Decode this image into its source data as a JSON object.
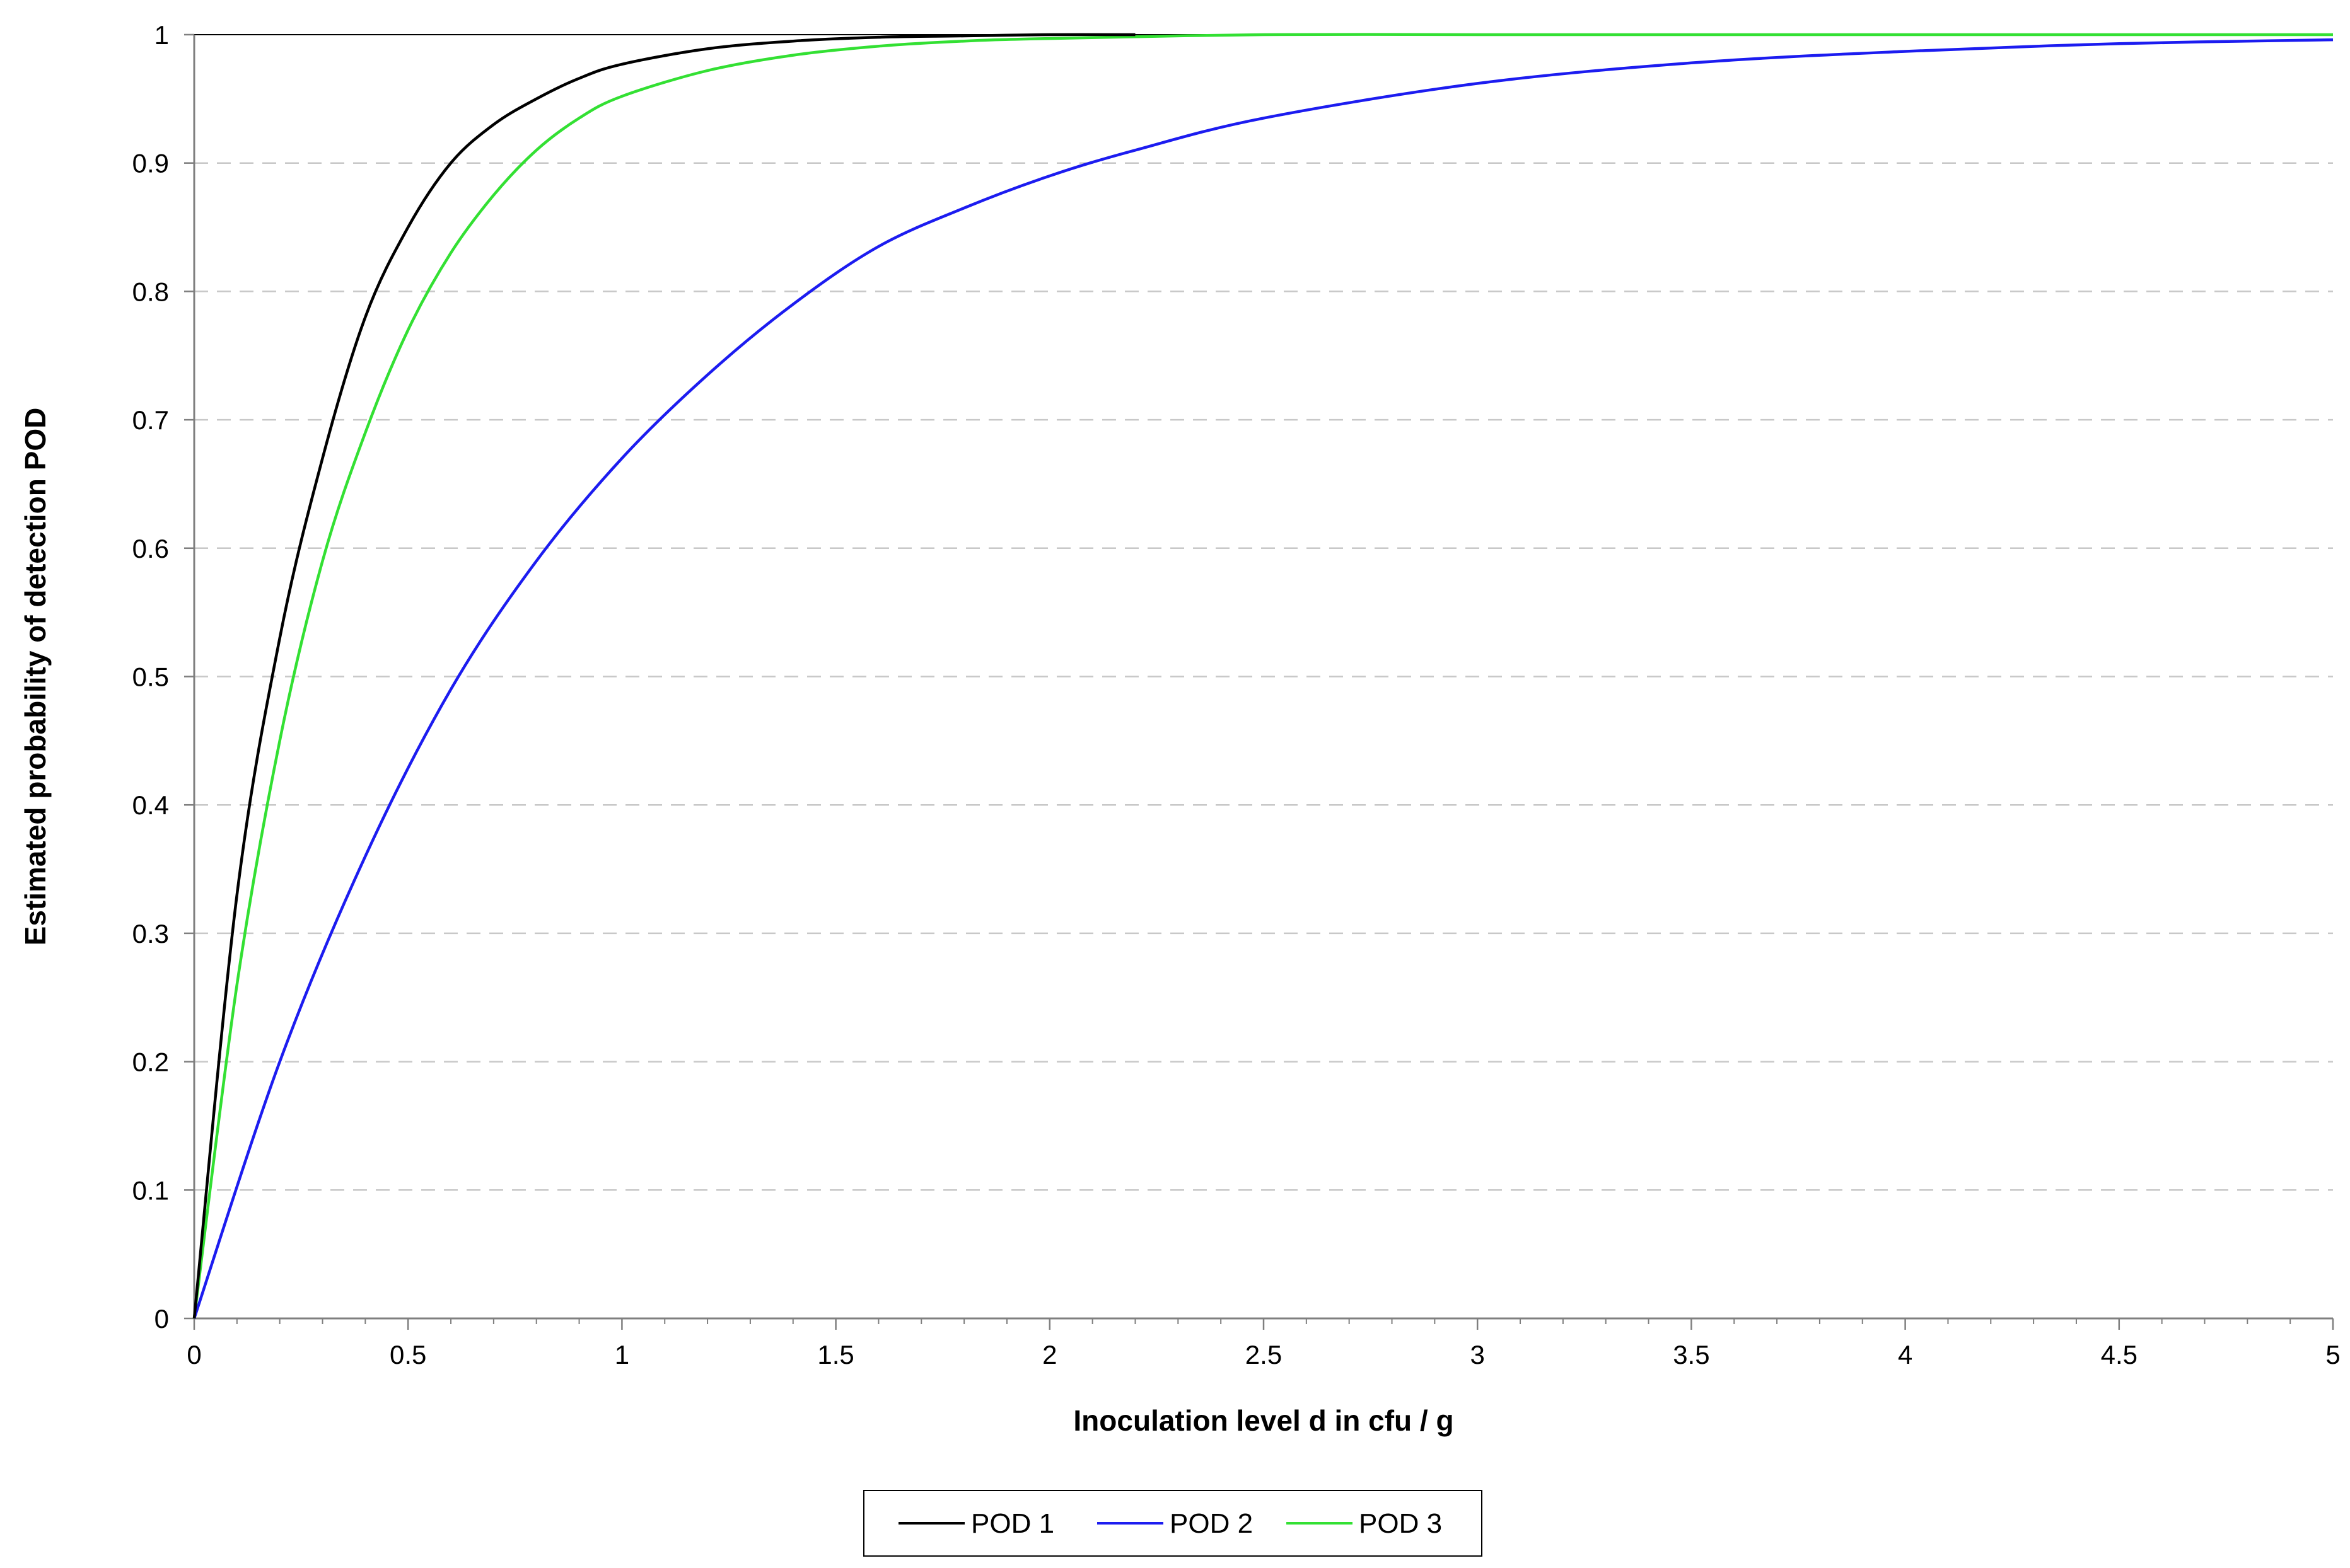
{
  "chart_data": {
    "type": "line",
    "title": "",
    "xlabel": "Inoculation level d  in cfu / g",
    "ylabel": "Estimated probability of detection  POD",
    "xlim": [
      0,
      5
    ],
    "ylim": [
      0,
      1
    ],
    "xticks": [
      "0",
      "0.5",
      "1",
      "1.5",
      "2",
      "2.5",
      "3",
      "3.5",
      "4",
      "4.5",
      "5"
    ],
    "yticks": [
      "0",
      "0.1",
      "0.2",
      "0.3",
      "0.4",
      "0.5",
      "0.6",
      "0.7",
      "0.8",
      "0.9",
      "1"
    ],
    "grid": "horizontal dashed",
    "legend_position": "bottom-center",
    "series": [
      {
        "name": "POD 1",
        "color": "#000000",
        "x": [
          0,
          0.1,
          0.2,
          0.3,
          0.4,
          0.5,
          0.6,
          0.7,
          0.8,
          0.9,
          1.0,
          1.2,
          1.4,
          1.6,
          1.8,
          2.0,
          2.2
        ],
        "y": [
          0,
          0.33,
          0.53,
          0.67,
          0.78,
          0.85,
          0.9,
          0.93,
          0.95,
          0.966,
          0.977,
          0.989,
          0.995,
          0.998,
          0.999,
          1.0,
          1.0
        ]
      },
      {
        "name": "POD 2",
        "color": "#1c1cf0",
        "x": [
          0,
          0.2,
          0.4,
          0.6,
          0.8,
          1.0,
          1.2,
          1.4,
          1.6,
          1.8,
          2.0,
          2.2,
          2.5,
          3.0,
          3.5,
          4.0,
          4.5,
          5.0
        ],
        "y": [
          0,
          0.2,
          0.36,
          0.49,
          0.59,
          0.67,
          0.735,
          0.79,
          0.835,
          0.865,
          0.89,
          0.91,
          0.935,
          0.962,
          0.978,
          0.987,
          0.993,
          0.996
        ]
      },
      {
        "name": "POD 3",
        "color": "#33e033",
        "x": [
          0,
          0.1,
          0.2,
          0.3,
          0.4,
          0.5,
          0.6,
          0.7,
          0.8,
          0.9,
          1.0,
          1.2,
          1.4,
          1.6,
          1.8,
          2.0,
          2.5,
          3.0,
          3.5,
          4.0,
          4.5,
          5.0
        ],
        "y": [
          0,
          0.26,
          0.45,
          0.59,
          0.69,
          0.77,
          0.83,
          0.875,
          0.91,
          0.935,
          0.952,
          0.972,
          0.984,
          0.991,
          0.995,
          0.997,
          1.0,
          1.0,
          1.0,
          1.0,
          1.0,
          1.0
        ]
      }
    ]
  }
}
